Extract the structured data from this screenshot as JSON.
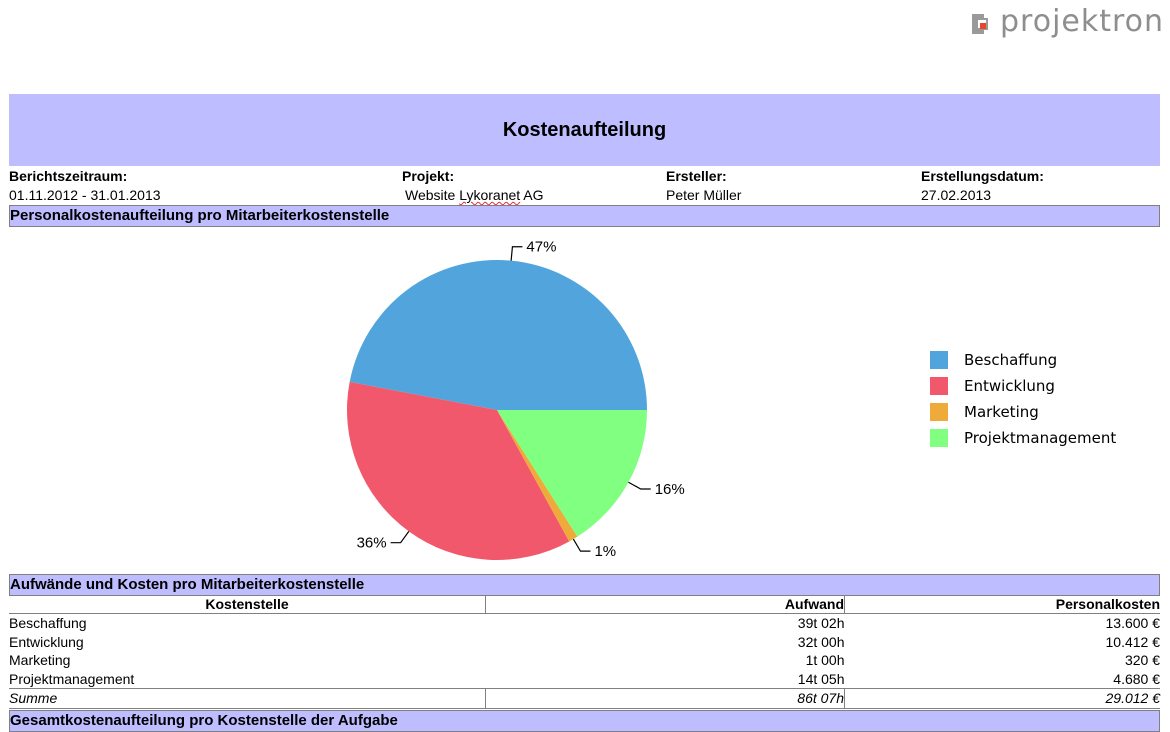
{
  "logo": {
    "text": "projektron"
  },
  "report": {
    "title": "Kostenaufteilung"
  },
  "meta": [
    {
      "label": "Berichtszeitraum:",
      "value": "01.11.2012 - 31.01.2013"
    },
    {
      "label": "Projekt:",
      "value_prefix": "Website ",
      "value_flagged": "Lykoranet",
      "value_suffix": " AG"
    },
    {
      "label": "Ersteller:",
      "value": "Peter Müller"
    },
    {
      "label": "Erstellungsdatum:",
      "value": "27.02.2013"
    }
  ],
  "sections": {
    "personal": "Personalkostenaufteilung pro Mitarbeiterkostenstelle",
    "aufwaende": "Aufwände und Kosten pro Mitarbeiterkostenstelle",
    "gesamt": "Gesamtkostenaufteilung pro Kostenstelle der Aufgabe"
  },
  "chart_data": {
    "type": "pie",
    "title": "",
    "categories": [
      "Beschaffung",
      "Entwicklung",
      "Marketing",
      "Projektmanagement"
    ],
    "values": [
      47,
      36,
      1,
      16
    ],
    "labels": [
      "47%",
      "36%",
      "1%",
      "16%"
    ],
    "colors": [
      "#51a5dc",
      "#f2586c",
      "#eeab3a",
      "#80ff80"
    ],
    "legend_position": "right"
  },
  "table": {
    "headers": [
      "Kostenstelle",
      "Aufwand",
      "Personalkosten"
    ],
    "rows": [
      [
        "Beschaffung",
        "39t 02h",
        "13.600 €"
      ],
      [
        "Entwicklung",
        "32t 00h",
        "10.412 €"
      ],
      [
        "Marketing",
        "1t 00h",
        "320 €"
      ],
      [
        "Projektmanagement",
        "14t 05h",
        "4.680 €"
      ]
    ],
    "sum": [
      "Summe",
      "86t 07h",
      "29.012 €"
    ]
  }
}
